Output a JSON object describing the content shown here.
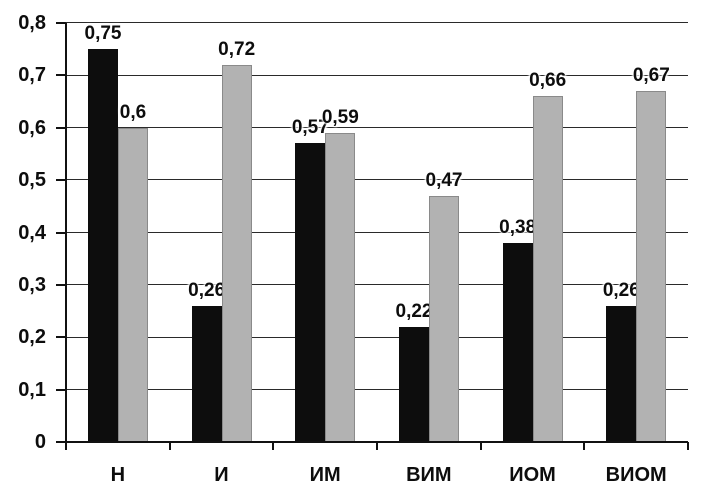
{
  "chart_data": {
    "type": "bar",
    "title": "",
    "xlabel": "",
    "ylabel": "",
    "categories": [
      "Н",
      "И",
      "ИМ",
      "ВИМ",
      "ИОМ",
      "ВИОМ"
    ],
    "series": [
      {
        "name": "black-series",
        "color": "#0d0d0d",
        "border": "#000000",
        "values": [
          0.75,
          0.26,
          0.57,
          0.22,
          0.38,
          0.26
        ],
        "labels": [
          "0,75",
          "0,26",
          "0,57",
          "0,22",
          "0,38",
          "0,26"
        ]
      },
      {
        "name": "gray-series",
        "color": "#b2b2b2",
        "border": "#8a8a8a",
        "values": [
          0.6,
          0.72,
          0.59,
          0.47,
          0.66,
          0.67
        ],
        "labels": [
          "0,6",
          "0,72",
          "0,59",
          "0,47",
          "0,66",
          "0,67"
        ]
      }
    ],
    "ylim": [
      0,
      0.8
    ],
    "ytick_step": 0.1,
    "yticks": [
      {
        "value": 0.0,
        "label": "0"
      },
      {
        "value": 0.1,
        "label": "0,1"
      },
      {
        "value": 0.2,
        "label": "0,2"
      },
      {
        "value": 0.3,
        "label": "0,3"
      },
      {
        "value": 0.4,
        "label": "0,4"
      },
      {
        "value": 0.5,
        "label": "0,5"
      },
      {
        "value": 0.6,
        "label": "0,6"
      },
      {
        "value": 0.7,
        "label": "0,7"
      },
      {
        "value": 0.8,
        "label": "0,8"
      }
    ],
    "grid": true,
    "legend_position": "none",
    "colors": {
      "background": "#ffffff",
      "axis": "#111111",
      "gridline": "#2a2a2a"
    }
  }
}
